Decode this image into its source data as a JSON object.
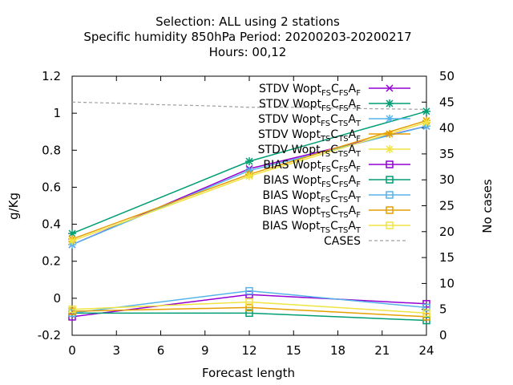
{
  "chart_data": {
    "type": "line",
    "title_lines": [
      "Selection: ALL using     2 stations",
      "Specific humidity 850hPa   Period: 20200203-20200217",
      "Hours:  00,12"
    ],
    "xlabel": "Forecast length",
    "ylabel": "g/Kg",
    "y2label": "No cases",
    "x": [
      0,
      12,
      24
    ],
    "xlim": [
      0,
      24
    ],
    "ylim": [
      -0.2,
      1.2
    ],
    "y2lim": [
      0,
      50
    ],
    "xticks": [
      "0",
      "3",
      "6",
      "9",
      "12",
      "15",
      "18",
      "21",
      "24"
    ],
    "yticks": [
      "-0.2",
      "0",
      "0.2",
      "0.4",
      "0.6",
      "0.8",
      "1",
      "1.2"
    ],
    "y2ticks": [
      "0",
      "5",
      "10",
      "15",
      "20",
      "25",
      "30",
      "35",
      "40",
      "45",
      "50"
    ],
    "legend_position": "top-right",
    "series": [
      {
        "name": "STDV Wopt",
        "sub1": "FS",
        "sub2": "FS",
        "sub3": "F",
        "color": "#9400d3",
        "marker": "x",
        "values": [
          0.29,
          0.7,
          0.93
        ]
      },
      {
        "name": "STDV Wopt",
        "sub1": "FS",
        "sub2": "FS",
        "sub3": "F",
        "color": "#009e73",
        "marker": "star",
        "values": [
          0.35,
          0.74,
          1.01
        ]
      },
      {
        "name": "STDV Wopt",
        "sub1": "FS",
        "sub2": "TS",
        "sub3": "T",
        "color": "#56b4e9",
        "marker": "star",
        "values": [
          0.29,
          0.69,
          0.93
        ]
      },
      {
        "name": "STDV Wopt",
        "sub1": "TS",
        "sub2": "TS",
        "sub3": "F",
        "color": "#e69f00",
        "marker": "star",
        "values": [
          0.32,
          0.67,
          0.96
        ]
      },
      {
        "name": "STDV Wopt",
        "sub1": "TS",
        "sub2": "TS",
        "sub3": "T",
        "color": "#f0e442",
        "marker": "star",
        "values": [
          0.31,
          0.66,
          0.95
        ]
      },
      {
        "name": "BIAS Wopt",
        "sub1": "FS",
        "sub2": "FS",
        "sub3": "F",
        "color": "#9400d3",
        "marker": "square",
        "values": [
          -0.1,
          0.02,
          -0.03
        ]
      },
      {
        "name": "BIAS Wopt",
        "sub1": "FS",
        "sub2": "FS",
        "sub3": "F",
        "color": "#009e73",
        "marker": "square",
        "values": [
          -0.08,
          -0.08,
          -0.12
        ]
      },
      {
        "name": "BIAS Wopt",
        "sub1": "FS",
        "sub2": "TS",
        "sub3": "T",
        "color": "#56b4e9",
        "marker": "square",
        "values": [
          -0.08,
          0.04,
          -0.05
        ]
      },
      {
        "name": "BIAS Wopt",
        "sub1": "TS",
        "sub2": "TS",
        "sub3": "F",
        "color": "#e69f00",
        "marker": "square",
        "values": [
          -0.07,
          -0.05,
          -0.1
        ]
      },
      {
        "name": "BIAS Wopt",
        "sub1": "TS",
        "sub2": "TS",
        "sub3": "T",
        "color": "#f0e442",
        "marker": "square",
        "values": [
          -0.06,
          -0.02,
          -0.08
        ]
      }
    ],
    "cases": {
      "name": "CASES",
      "color": "#a0a0a0",
      "axis": "y2",
      "x": [
        0,
        3,
        6,
        9,
        12,
        15,
        18,
        21,
        24
      ],
      "values": [
        45,
        44.8,
        44.5,
        44.3,
        44,
        44,
        43.8,
        43.7,
        43.6
      ]
    }
  }
}
